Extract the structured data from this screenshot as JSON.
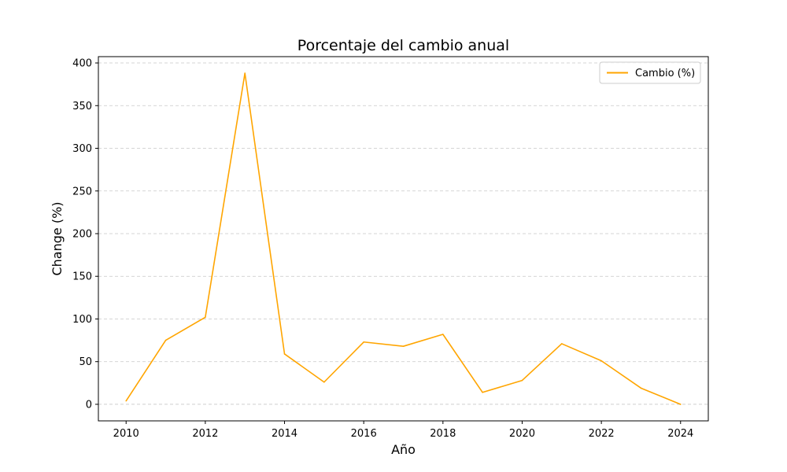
{
  "chart_data": {
    "type": "line",
    "title": "Porcentaje del cambio anual",
    "xlabel": "Año",
    "ylabel": "Change (%)",
    "x": [
      2010,
      2011,
      2012,
      2013,
      2014,
      2015,
      2016,
      2017,
      2018,
      2019,
      2020,
      2021,
      2022,
      2023,
      2024
    ],
    "series": [
      {
        "name": "Cambio (%)",
        "color": "#FFA500",
        "values": [
          4,
          75,
          102,
          388,
          59,
          26,
          73,
          68,
          82,
          14,
          28,
          71,
          51,
          19,
          0
        ]
      }
    ],
    "xlim": [
      2009.3,
      2024.7
    ],
    "ylim": [
      -19.4,
      407.4
    ],
    "xticks": [
      2010,
      2012,
      2014,
      2016,
      2018,
      2020,
      2022,
      2024
    ],
    "yticks": [
      0,
      50,
      100,
      150,
      200,
      250,
      300,
      350,
      400
    ],
    "grid": "horizontal-dashed",
    "legend_position": "top-right"
  }
}
